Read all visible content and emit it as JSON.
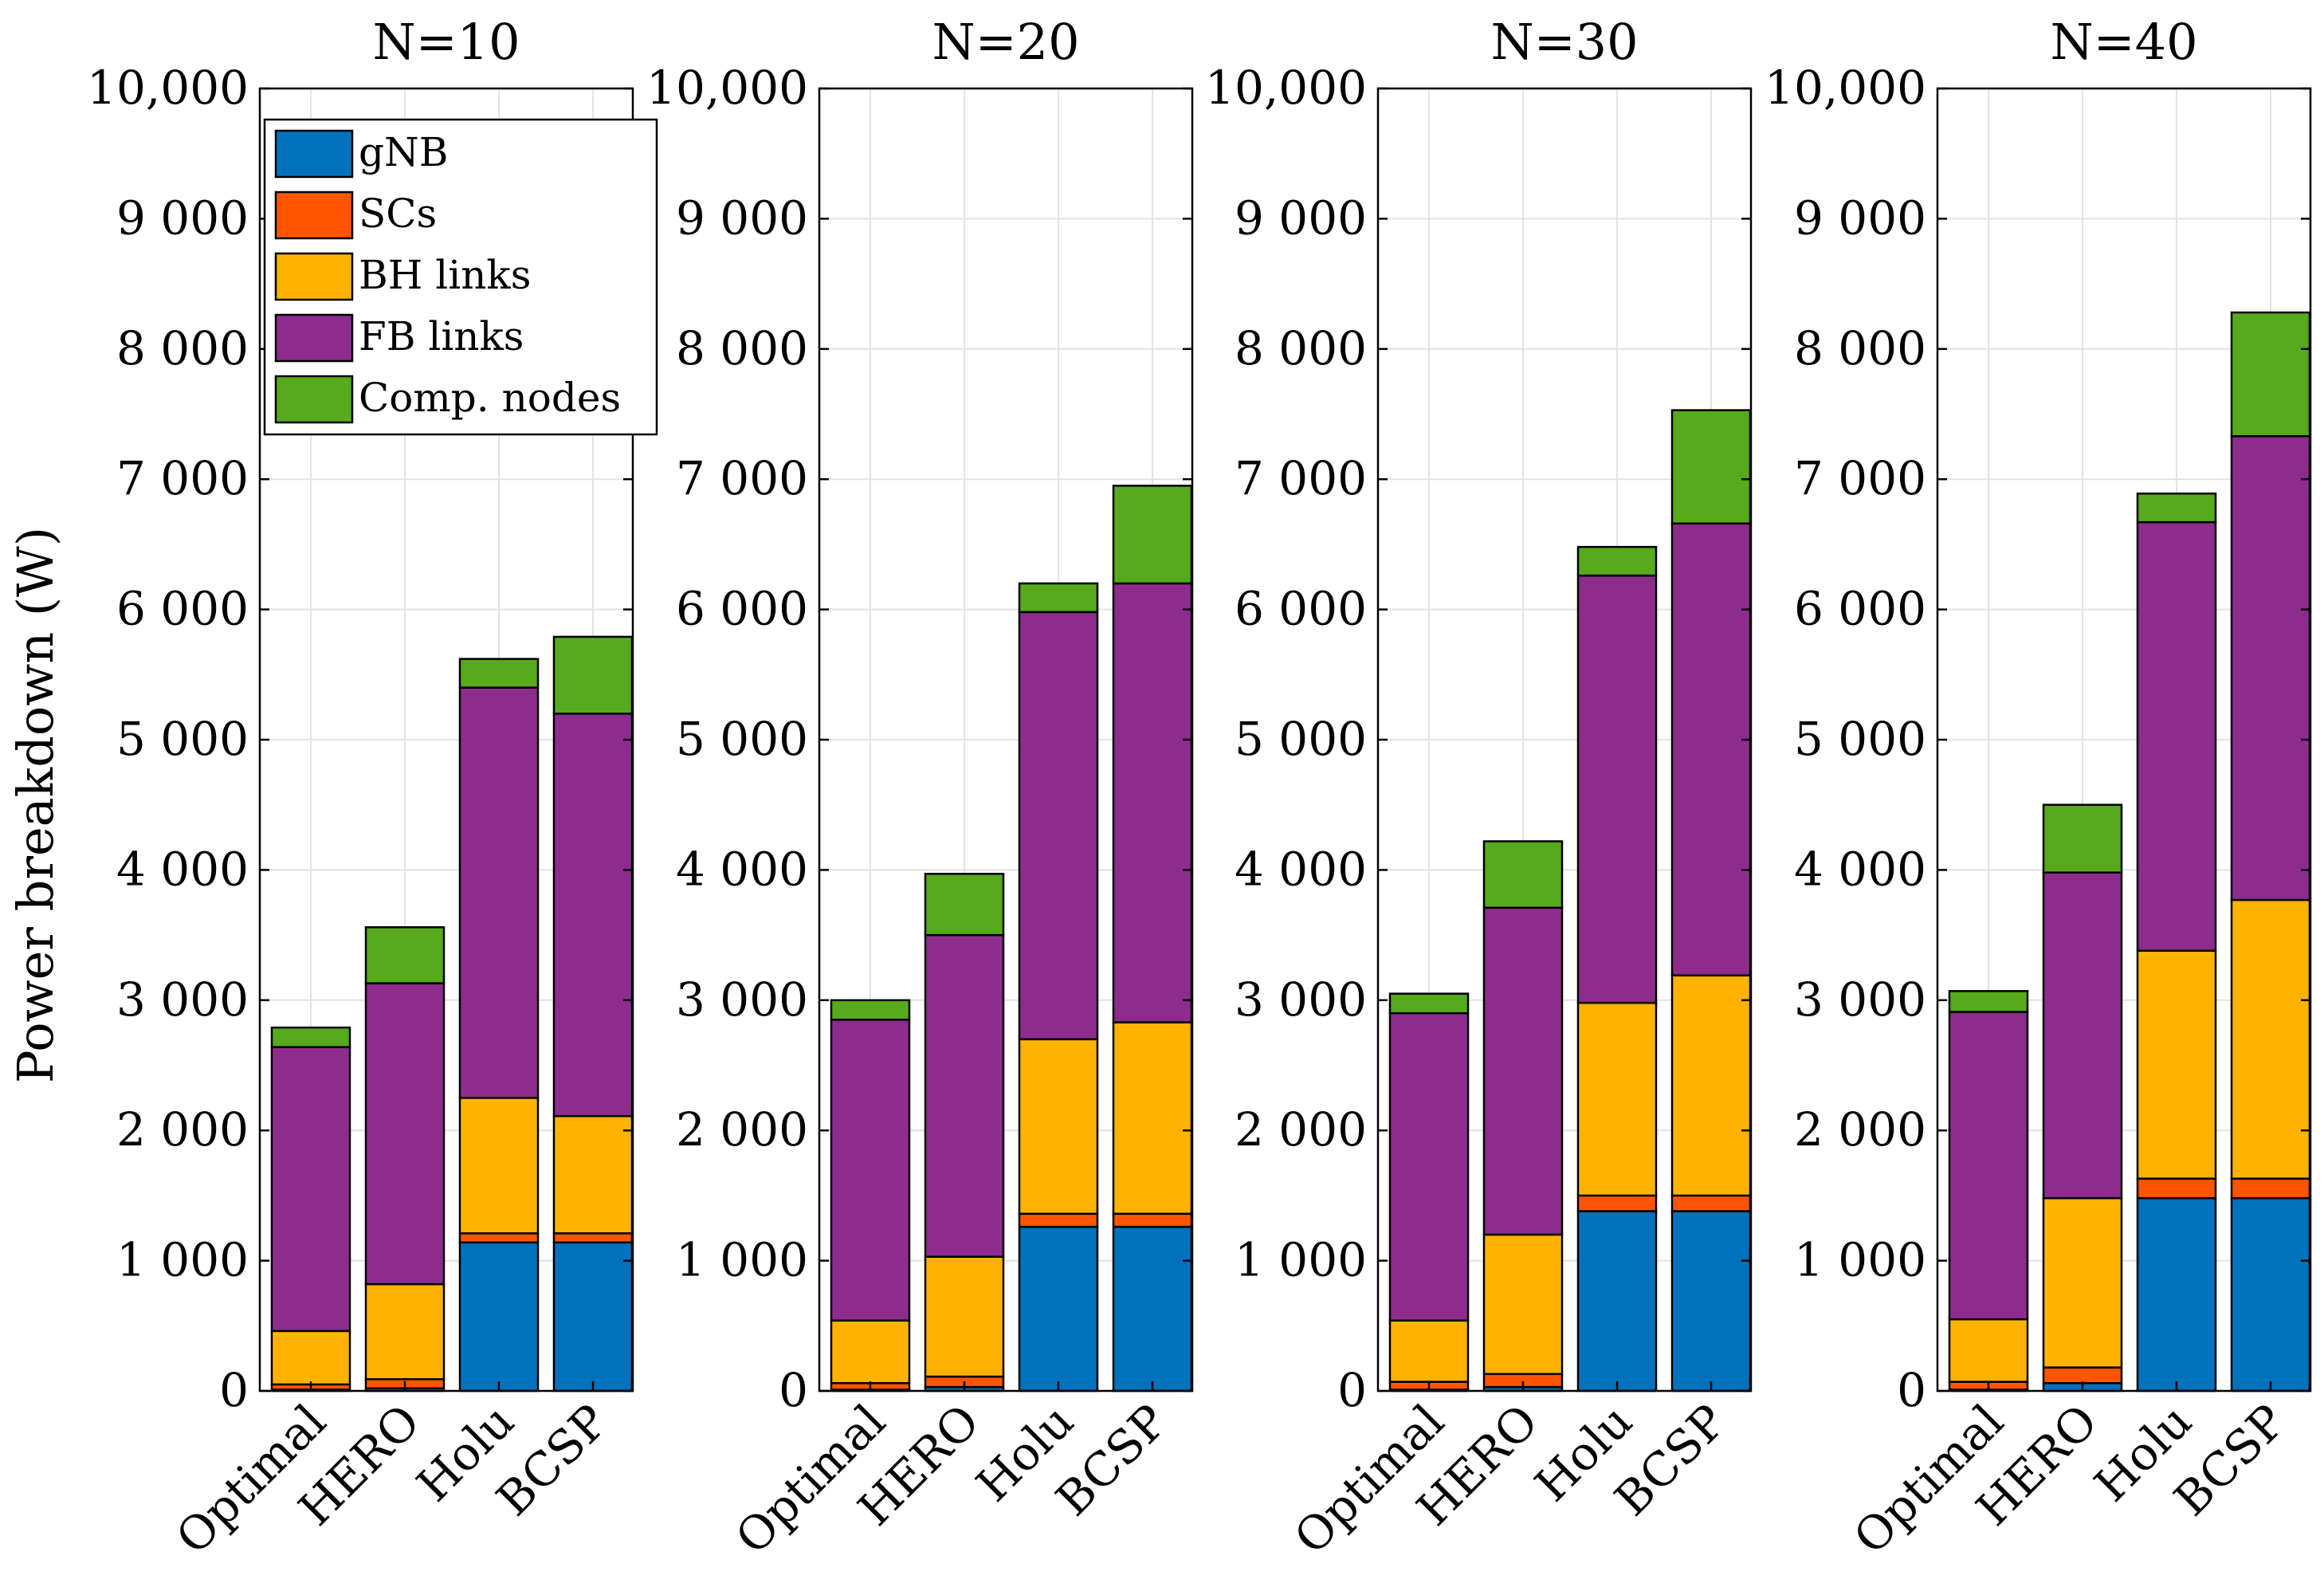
{
  "chart_data": {
    "type": "bar",
    "stacked": true,
    "ylabel": "Power breakdown (W)",
    "ylim": [
      0,
      10000
    ],
    "yticks": [
      0,
      1000,
      2000,
      3000,
      4000,
      5000,
      6000,
      7000,
      8000,
      9000,
      10000
    ],
    "ytick_labels": [
      "0",
      "1 000",
      "2 000",
      "3 000",
      "4 000",
      "5 000",
      "6 000",
      "7 000",
      "8 000",
      "9 000",
      "10,000"
    ],
    "categories": [
      "Optimal",
      "HERO",
      "Holu",
      "BCSP"
    ],
    "legend": {
      "position": "top-left",
      "entries": [
        {
          "name": "gNB",
          "color": "#0072BD"
        },
        {
          "name": "SCs",
          "color": "#FF5500"
        },
        {
          "name": "BH links",
          "color": "#FFB300"
        },
        {
          "name": "FB links",
          "color": "#8E2C8E"
        },
        {
          "name": "Comp. nodes",
          "color": "#56AA1C"
        }
      ]
    },
    "panels": [
      {
        "title": "N=10",
        "series": [
          {
            "name": "gNB",
            "values": [
              10,
              20,
              1140,
              1140
            ]
          },
          {
            "name": "SCs",
            "values": [
              40,
              70,
              70,
              70
            ]
          },
          {
            "name": "BH links",
            "values": [
              410,
              730,
              1040,
              900
            ]
          },
          {
            "name": "FB links",
            "values": [
              2180,
              2310,
              3150,
              3090
            ]
          },
          {
            "name": "Comp. nodes",
            "values": [
              150,
              430,
              220,
              590
            ]
          }
        ]
      },
      {
        "title": "N=20",
        "series": [
          {
            "name": "gNB",
            "values": [
              10,
              30,
              1260,
              1260
            ]
          },
          {
            "name": "SCs",
            "values": [
              50,
              80,
              100,
              100
            ]
          },
          {
            "name": "BH links",
            "values": [
              480,
              920,
              1340,
              1470
            ]
          },
          {
            "name": "FB links",
            "values": [
              2310,
              2470,
              3280,
              3370
            ]
          },
          {
            "name": "Comp. nodes",
            "values": [
              150,
              470,
              220,
              750
            ]
          }
        ]
      },
      {
        "title": "N=30",
        "series": [
          {
            "name": "gNB",
            "values": [
              10,
              30,
              1380,
              1380
            ]
          },
          {
            "name": "SCs",
            "values": [
              60,
              100,
              120,
              120
            ]
          },
          {
            "name": "BH links",
            "values": [
              470,
              1070,
              1480,
              1690
            ]
          },
          {
            "name": "FB links",
            "values": [
              2360,
              2510,
              3280,
              3470
            ]
          },
          {
            "name": "Comp. nodes",
            "values": [
              150,
              510,
              220,
              870
            ]
          }
        ]
      },
      {
        "title": "N=40",
        "series": [
          {
            "name": "gNB",
            "values": [
              10,
              60,
              1480,
              1480
            ]
          },
          {
            "name": "SCs",
            "values": [
              60,
              120,
              150,
              150
            ]
          },
          {
            "name": "BH links",
            "values": [
              480,
              1300,
              1750,
              2140
            ]
          },
          {
            "name": "FB links",
            "values": [
              2360,
              2500,
              3290,
              3560
            ]
          },
          {
            "name": "Comp. nodes",
            "values": [
              160,
              520,
              220,
              950
            ]
          }
        ]
      }
    ]
  }
}
